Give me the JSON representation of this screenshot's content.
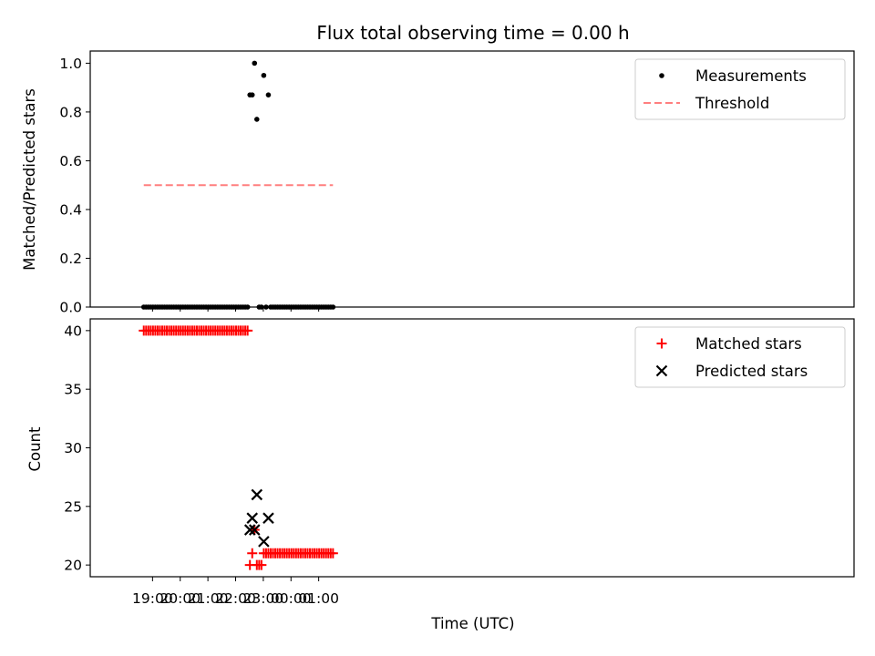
{
  "chart_data": {
    "title": "Flux total observing time = 0.00 h",
    "xlabel": "Time (UTC)",
    "x_ticks": [
      "19:00",
      "20:00",
      "21:00",
      "22:00",
      "23:00",
      "00:00",
      "01:00"
    ],
    "panels": [
      {
        "type": "scatter",
        "ylabel": "Matched/Predicted stars",
        "ylim": [
          0,
          1.05
        ],
        "y_ticks": [
          "0.0",
          "0.2",
          "0.4",
          "0.6",
          "0.8",
          "1.0"
        ],
        "legend_position": "top-right",
        "series": [
          {
            "name": "Measurements",
            "marker": "dot",
            "color": "#000000",
            "points": [
              [
                "18:41",
                0
              ],
              [
                "18:46",
                0
              ],
              [
                "18:51",
                0
              ],
              [
                "18:56",
                0
              ],
              [
                "19:01",
                0
              ],
              [
                "19:06",
                0
              ],
              [
                "19:11",
                0
              ],
              [
                "19:16",
                0
              ],
              [
                "19:21",
                0
              ],
              [
                "19:26",
                0
              ],
              [
                "19:31",
                0
              ],
              [
                "19:36",
                0
              ],
              [
                "19:41",
                0
              ],
              [
                "19:46",
                0
              ],
              [
                "19:51",
                0
              ],
              [
                "19:56",
                0
              ],
              [
                "20:01",
                0
              ],
              [
                "20:06",
                0
              ],
              [
                "20:11",
                0
              ],
              [
                "20:16",
                0
              ],
              [
                "20:21",
                0
              ],
              [
                "20:26",
                0
              ],
              [
                "20:31",
                0
              ],
              [
                "20:36",
                0
              ],
              [
                "20:41",
                0
              ],
              [
                "20:46",
                0
              ],
              [
                "20:51",
                0
              ],
              [
                "20:56",
                0
              ],
              [
                "21:01",
                0
              ],
              [
                "21:06",
                0
              ],
              [
                "21:11",
                0
              ],
              [
                "21:16",
                0
              ],
              [
                "21:21",
                0
              ],
              [
                "21:26",
                0
              ],
              [
                "21:31",
                0
              ],
              [
                "21:36",
                0
              ],
              [
                "21:41",
                0
              ],
              [
                "21:46",
                0
              ],
              [
                "21:51",
                0
              ],
              [
                "21:56",
                0
              ],
              [
                "22:01",
                0
              ],
              [
                "22:06",
                0
              ],
              [
                "22:11",
                0
              ],
              [
                "22:16",
                0
              ],
              [
                "22:21",
                0
              ],
              [
                "22:26",
                0
              ],
              [
                "22:31",
                0.87
              ],
              [
                "22:36",
                0.87
              ],
              [
                "22:41",
                1.0
              ],
              [
                "22:46",
                0.77
              ],
              [
                "22:51",
                0
              ],
              [
                "22:56",
                0
              ],
              [
                "23:01",
                0.95
              ],
              [
                "23:06",
                0
              ],
              [
                "23:11",
                0.87
              ],
              [
                "23:16",
                0
              ],
              [
                "23:21",
                0
              ],
              [
                "23:26",
                0
              ],
              [
                "23:31",
                0
              ],
              [
                "23:36",
                0
              ],
              [
                "23:41",
                0
              ],
              [
                "23:46",
                0
              ],
              [
                "23:51",
                0
              ],
              [
                "23:56",
                0
              ],
              [
                "00:01",
                0
              ],
              [
                "00:06",
                0
              ],
              [
                "00:11",
                0
              ],
              [
                "00:16",
                0
              ],
              [
                "00:21",
                0
              ],
              [
                "00:26",
                0
              ],
              [
                "00:31",
                0
              ],
              [
                "00:36",
                0
              ],
              [
                "00:41",
                0
              ],
              [
                "00:46",
                0
              ],
              [
                "00:51",
                0
              ],
              [
                "00:56",
                0
              ],
              [
                "01:01",
                0
              ],
              [
                "01:06",
                0
              ],
              [
                "01:11",
                0
              ],
              [
                "01:16",
                0
              ],
              [
                "01:21",
                0
              ],
              [
                "01:26",
                0
              ],
              [
                "01:31",
                0
              ]
            ]
          },
          {
            "name": "Threshold",
            "marker": "dashed-line",
            "color": "#ff7f7f",
            "points": [
              [
                "18:41",
                0.5
              ],
              [
                "01:31",
                0.5
              ]
            ]
          }
        ]
      },
      {
        "type": "scatter",
        "ylabel": "Count",
        "ylim": [
          19,
          41
        ],
        "y_ticks": [
          "20",
          "25",
          "30",
          "35",
          "40"
        ],
        "legend_position": "top-right",
        "series": [
          {
            "name": "Matched stars",
            "marker": "plus",
            "color": "#ff0000",
            "points": [
              [
                "18:41",
                40
              ],
              [
                "18:46",
                40
              ],
              [
                "18:51",
                40
              ],
              [
                "18:56",
                40
              ],
              [
                "19:01",
                40
              ],
              [
                "19:06",
                40
              ],
              [
                "19:11",
                40
              ],
              [
                "19:16",
                40
              ],
              [
                "19:21",
                40
              ],
              [
                "19:26",
                40
              ],
              [
                "19:31",
                40
              ],
              [
                "19:36",
                40
              ],
              [
                "19:41",
                40
              ],
              [
                "19:46",
                40
              ],
              [
                "19:51",
                40
              ],
              [
                "19:56",
                40
              ],
              [
                "20:01",
                40
              ],
              [
                "20:06",
                40
              ],
              [
                "20:11",
                40
              ],
              [
                "20:16",
                40
              ],
              [
                "20:21",
                40
              ],
              [
                "20:26",
                40
              ],
              [
                "20:31",
                40
              ],
              [
                "20:36",
                40
              ],
              [
                "20:41",
                40
              ],
              [
                "20:46",
                40
              ],
              [
                "20:51",
                40
              ],
              [
                "20:56",
                40
              ],
              [
                "21:01",
                40
              ],
              [
                "21:06",
                40
              ],
              [
                "21:11",
                40
              ],
              [
                "21:16",
                40
              ],
              [
                "21:21",
                40
              ],
              [
                "21:26",
                40
              ],
              [
                "21:31",
                40
              ],
              [
                "21:36",
                40
              ],
              [
                "21:41",
                40
              ],
              [
                "21:46",
                40
              ],
              [
                "21:51",
                40
              ],
              [
                "21:56",
                40
              ],
              [
                "22:01",
                40
              ],
              [
                "22:06",
                40
              ],
              [
                "22:11",
                40
              ],
              [
                "22:16",
                40
              ],
              [
                "22:21",
                40
              ],
              [
                "22:26",
                40
              ],
              [
                "22:31",
                20
              ],
              [
                "22:36",
                21
              ],
              [
                "22:41",
                23
              ],
              [
                "22:46",
                20
              ],
              [
                "22:51",
                20
              ],
              [
                "22:56",
                20
              ],
              [
                "23:01",
                21
              ],
              [
                "23:06",
                21
              ],
              [
                "23:11",
                21
              ],
              [
                "23:16",
                21
              ],
              [
                "23:21",
                21
              ],
              [
                "23:26",
                21
              ],
              [
                "23:31",
                21
              ],
              [
                "23:36",
                21
              ],
              [
                "23:41",
                21
              ],
              [
                "23:46",
                21
              ],
              [
                "23:51",
                21
              ],
              [
                "23:56",
                21
              ],
              [
                "00:01",
                21
              ],
              [
                "00:06",
                21
              ],
              [
                "00:11",
                21
              ],
              [
                "00:16",
                21
              ],
              [
                "00:21",
                21
              ],
              [
                "00:26",
                21
              ],
              [
                "00:31",
                21
              ],
              [
                "00:36",
                21
              ],
              [
                "00:41",
                21
              ],
              [
                "00:46",
                21
              ],
              [
                "00:51",
                21
              ],
              [
                "00:56",
                21
              ],
              [
                "01:01",
                21
              ],
              [
                "01:06",
                21
              ],
              [
                "01:11",
                21
              ],
              [
                "01:16",
                21
              ],
              [
                "01:21",
                21
              ],
              [
                "01:26",
                21
              ],
              [
                "01:31",
                21
              ]
            ]
          },
          {
            "name": "Predicted stars",
            "marker": "x",
            "color": "#000000",
            "points": [
              [
                "22:31",
                23
              ],
              [
                "22:36",
                24
              ],
              [
                "22:41",
                23
              ],
              [
                "22:46",
                26
              ],
              [
                "23:01",
                22
              ],
              [
                "23:11",
                24
              ]
            ]
          }
        ]
      }
    ]
  }
}
